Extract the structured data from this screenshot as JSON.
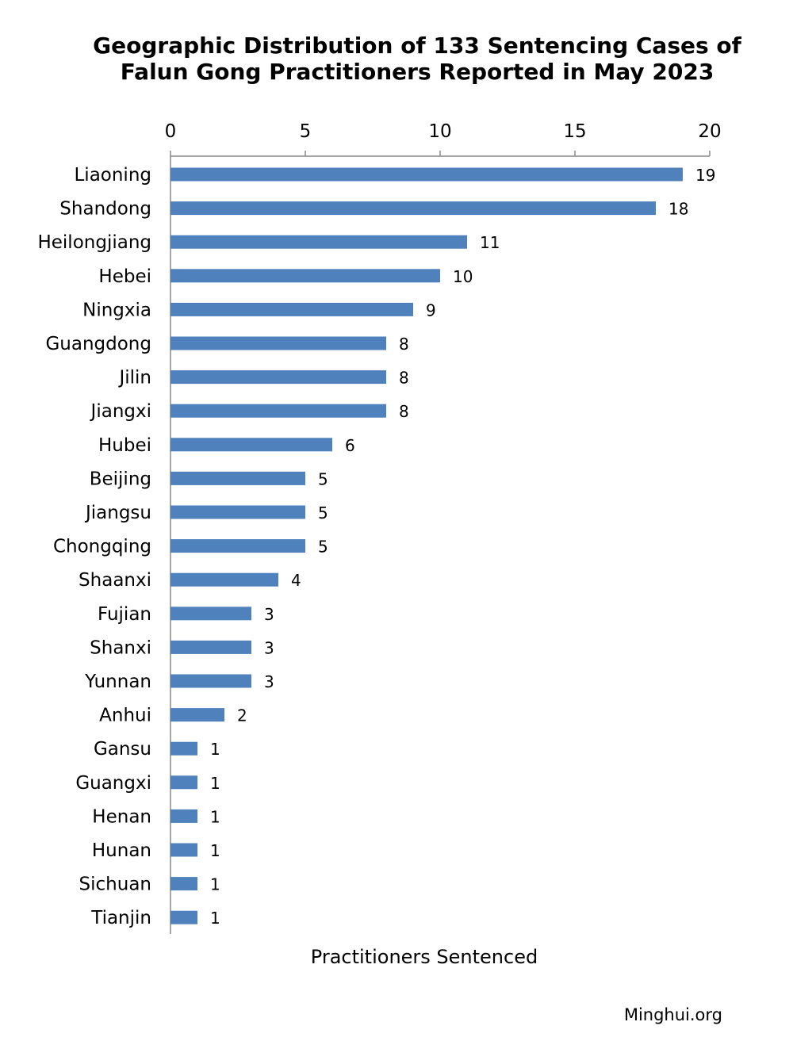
{
  "chart_data": {
    "type": "bar",
    "orientation": "horizontal",
    "title": "Geographic Distribution of 133 Sentencing Cases of Falun Gong Practitioners Reported in May 2023",
    "title_lines": [
      "Geographic Distribution of 133 Sentencing Cases of",
      "Falun Gong Practitioners Reported in May 2023"
    ],
    "xlabel": "Practitioners Sentenced",
    "ylabel": "",
    "xlim": [
      0,
      20
    ],
    "x_ticks": [
      0,
      5,
      10,
      15,
      20
    ],
    "x_axis_position": "top",
    "grid": false,
    "bar_color": "#4F81BD",
    "categories": [
      "Liaoning",
      "Shandong",
      "Heilongjiang",
      "Hebei",
      "Ningxia",
      "Guangdong",
      "Jilin",
      "Jiangxi",
      "Hubei",
      "Beijing",
      "Jiangsu",
      "Chongqing",
      "Shaanxi",
      "Fujian",
      "Shanxi",
      "Yunnan",
      "Anhui",
      "Gansu",
      "Guangxi",
      "Henan",
      "Hunan",
      "Sichuan",
      "Tianjin"
    ],
    "values": [
      19,
      18,
      11,
      10,
      9,
      8,
      8,
      8,
      6,
      5,
      5,
      5,
      4,
      3,
      3,
      3,
      2,
      1,
      1,
      1,
      1,
      1,
      1
    ]
  },
  "source": "Minghui.org"
}
